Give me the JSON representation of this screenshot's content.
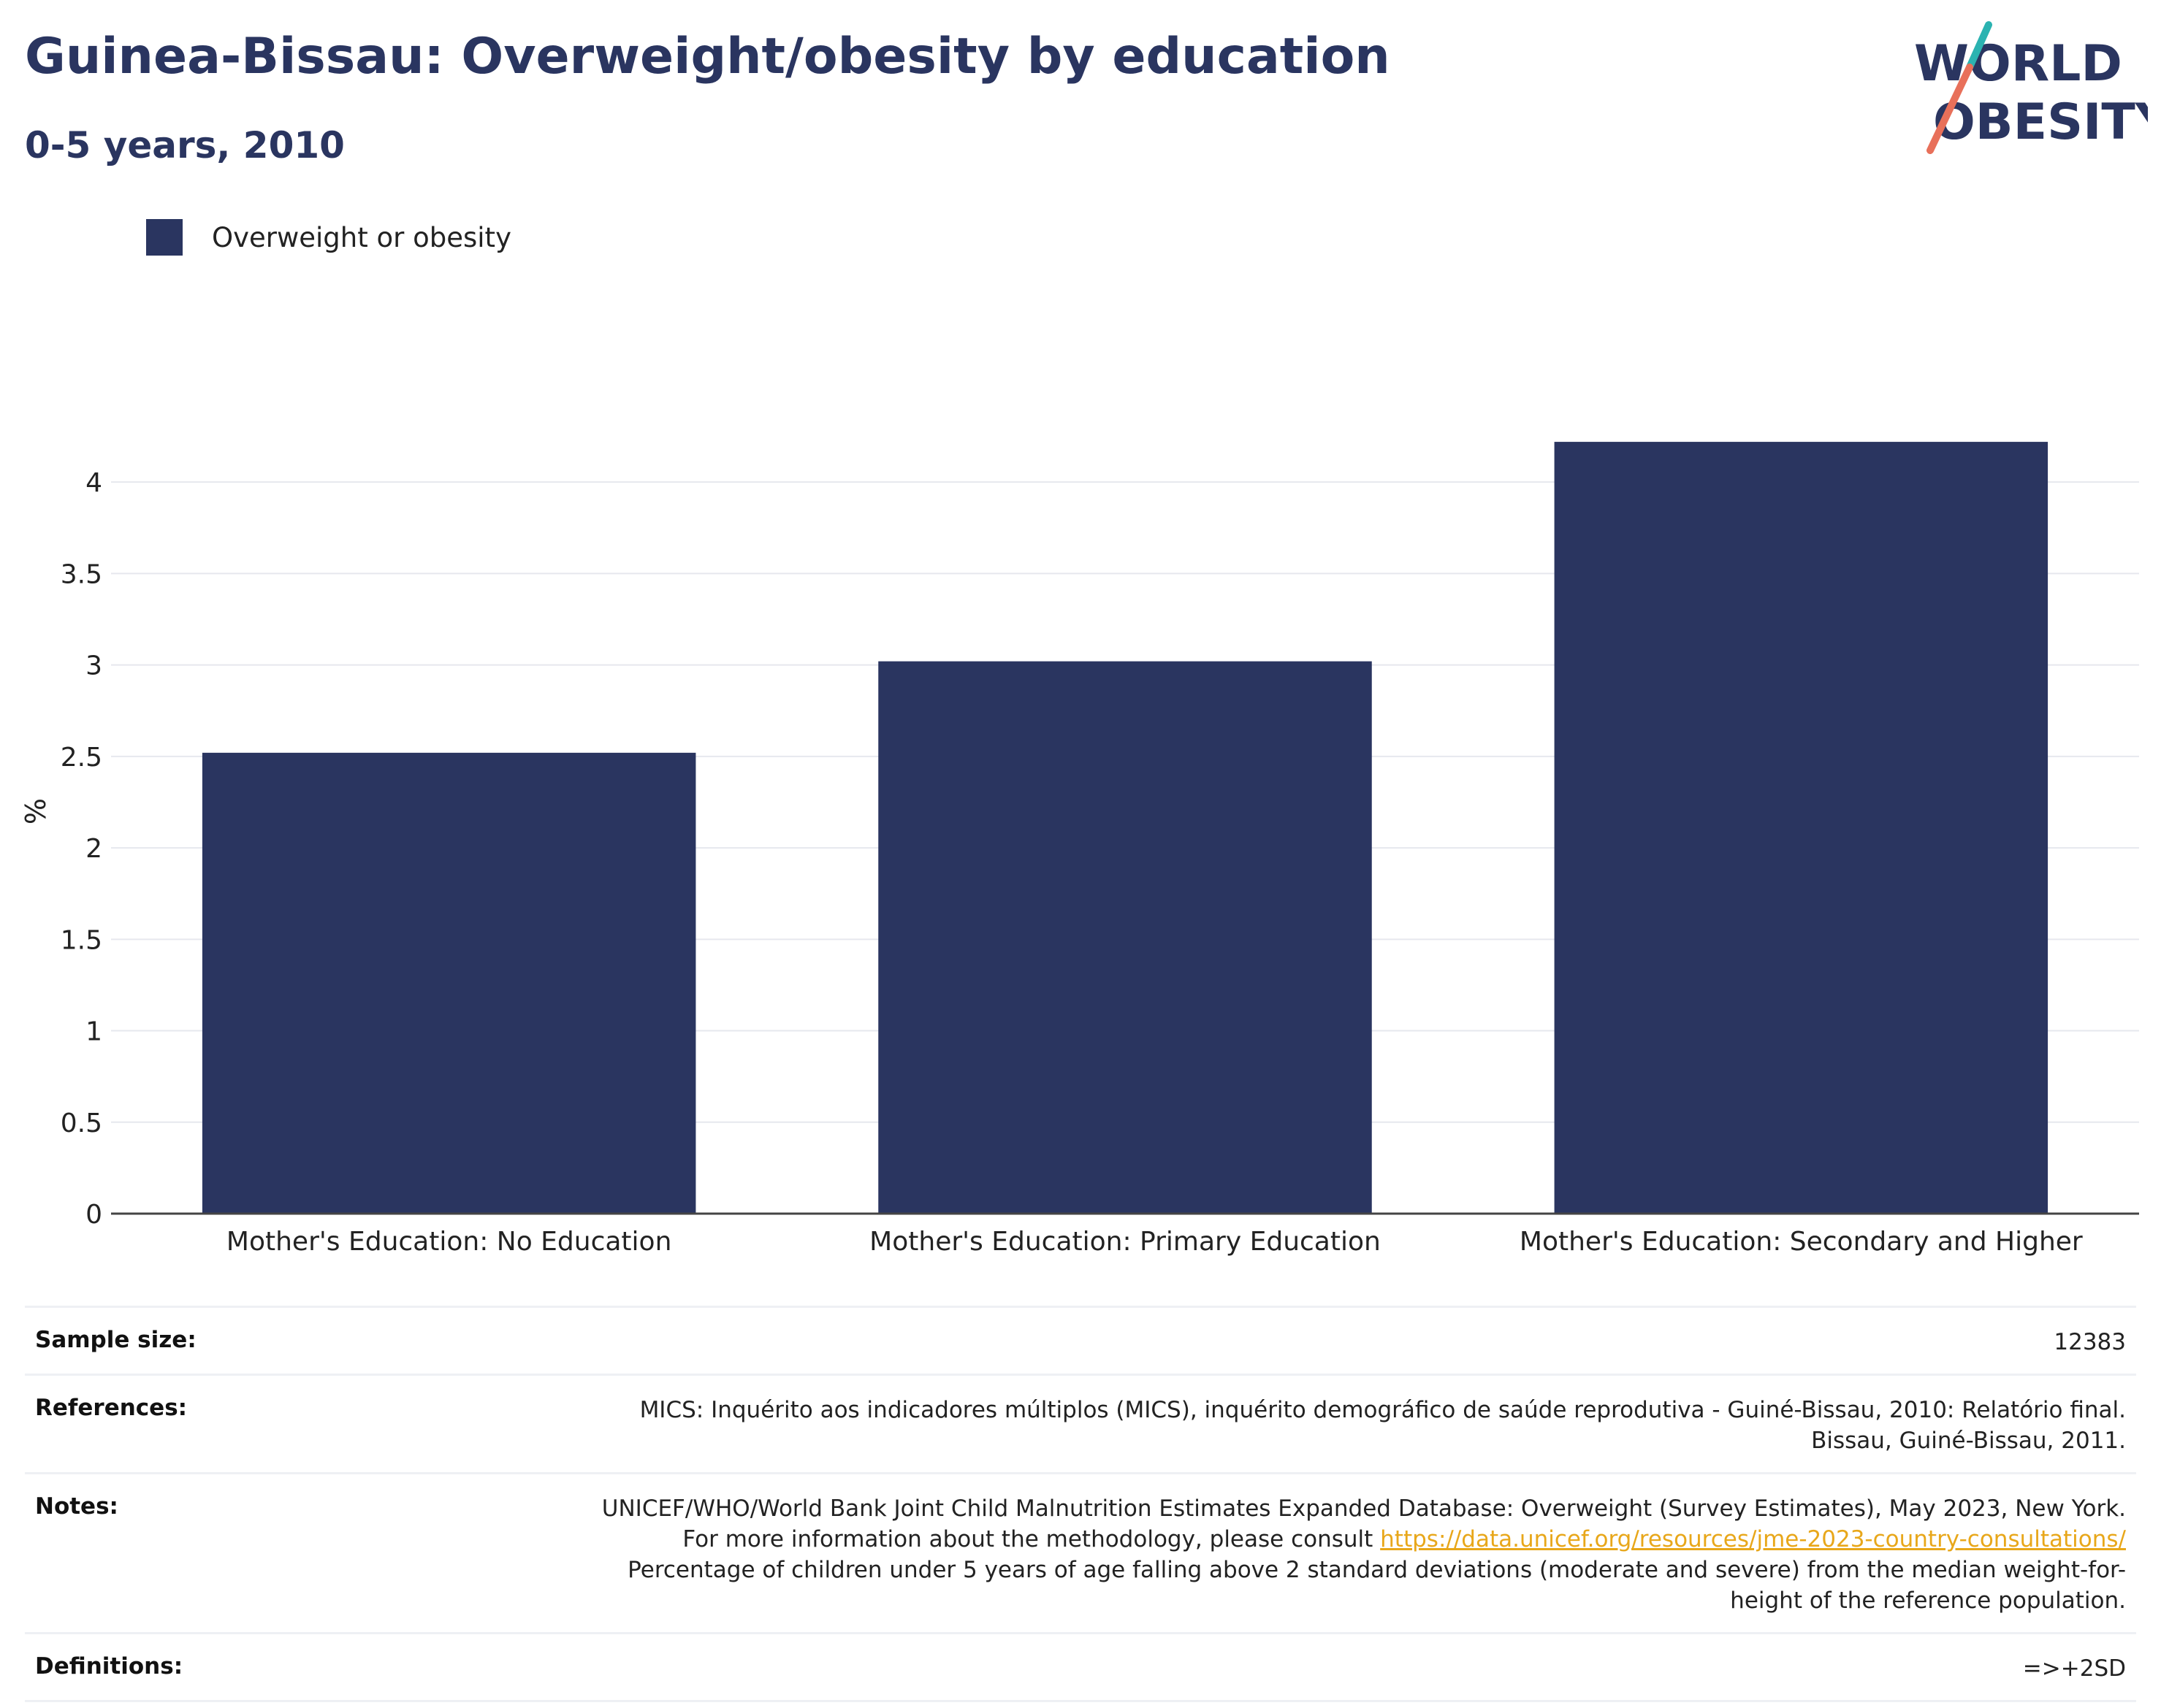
{
  "header": {
    "title": "Guinea-Bissau: Overweight/obesity by education",
    "subtitle": "0-5 years, 2010"
  },
  "logo": {
    "line1": "WORLD",
    "line2": "OBESITY",
    "colors": {
      "text": "#2a3560",
      "slash_top": "#2bb3b1",
      "slash_bottom": "#e8705a"
    }
  },
  "legend": {
    "items": [
      {
        "label": "Overweight or obesity",
        "color": "#2a3560"
      }
    ]
  },
  "chart_data": {
    "type": "bar",
    "title": "Guinea-Bissau: Overweight/obesity by education",
    "subtitle": "0-5 years, 2010",
    "categories": [
      "Mother's Education: No Education",
      "Mother's Education: Primary Education",
      "Mother's Education: Secondary and Higher"
    ],
    "series": [
      {
        "name": "Overweight or obesity",
        "values": [
          2.52,
          3.02,
          4.22
        ],
        "color": "#2a3560"
      }
    ],
    "ylabel": "%",
    "xlabel": "",
    "ylim": [
      0,
      4.4
    ],
    "yticks": [
      0,
      0.5,
      1,
      1.5,
      2,
      2.5,
      3,
      3.5,
      4
    ],
    "ytick_labels": [
      "0",
      "0.5",
      "1",
      "1.5",
      "2",
      "2.5",
      "3",
      "3.5",
      "4"
    ],
    "grid": true,
    "legend_position": "top-left"
  },
  "meta": {
    "sample_size_label": "Sample size:",
    "sample_size_value": "12383",
    "references_label": "References:",
    "references_value": "MICS: Inquérito aos indicadores múltiplos (MICS), inquérito demográfico de saúde reprodutiva - Guiné-Bissau, 2010: Relatório final. Bissau, Guiné-Bissau, 2011.",
    "notes_label": "Notes:",
    "notes_text_1": "UNICEF/WHO/World Bank Joint Child Malnutrition Estimates Expanded Database: Overweight (Survey Estimates), May 2023, New York. For more information about the methodology, please consult ",
    "notes_link": "https://data.unicef.org/resources/jme-2023-country-consultations/",
    "notes_text_2": " Percentage of children under 5 years of age falling above 2 standard deviations (moderate and severe) from the median weight-for-height of the reference population.",
    "definitions_label": "Definitions:",
    "definitions_value": "=>+2SD"
  }
}
